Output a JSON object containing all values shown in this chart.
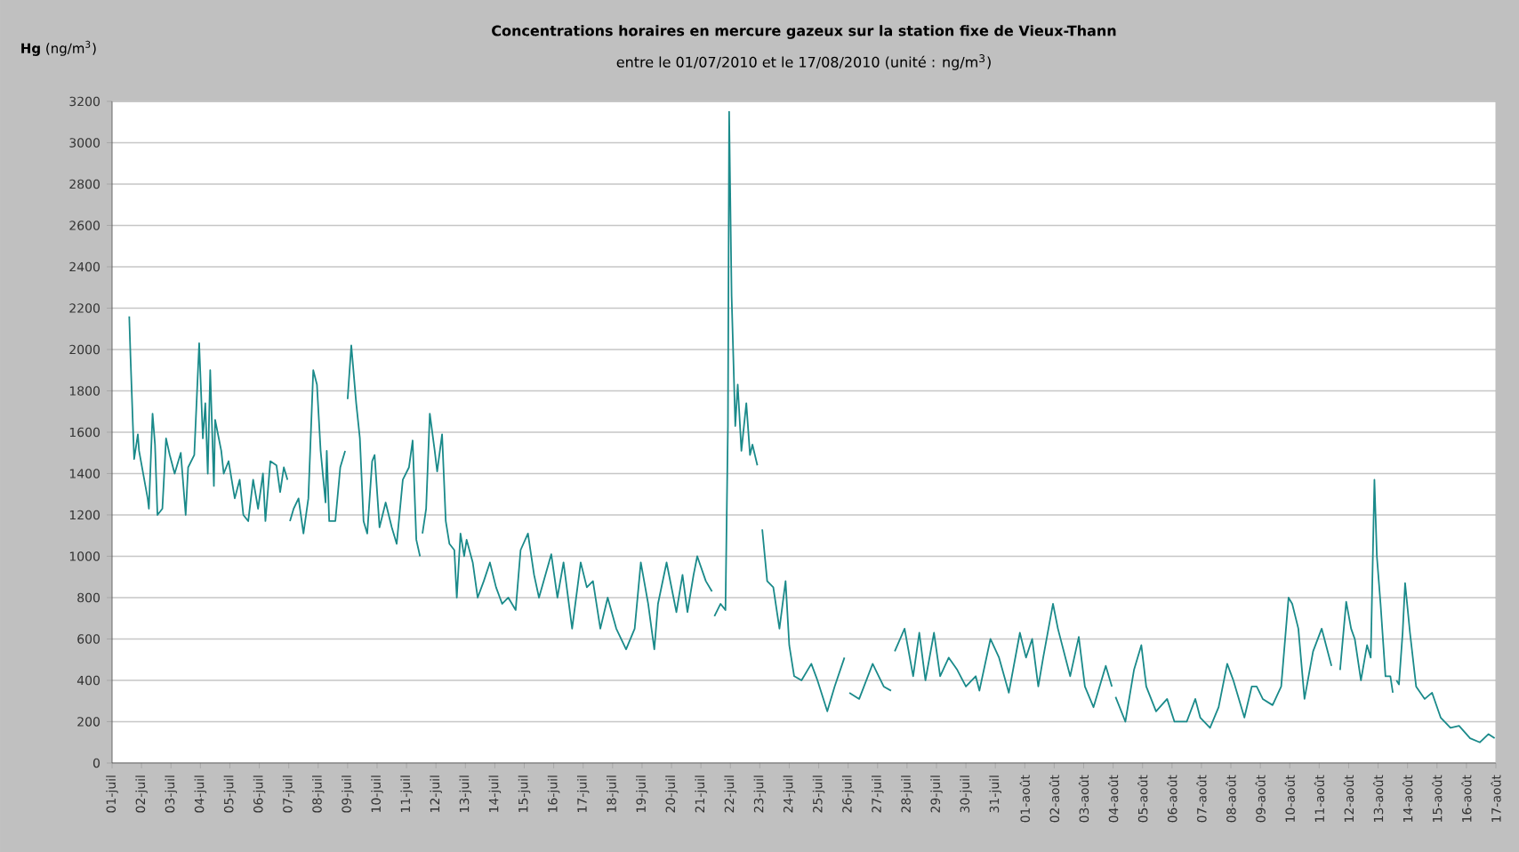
{
  "chart_data": {
    "type": "line",
    "title": "Concentrations horaires en mercure gazeux sur la station fixe de Vieux-Thann",
    "subtitle": "entre le 01/07/2010 et le 17/08/2010 (unité : ng/m$^{3}$)",
    "ylabel": "**Hg** (ng/m$^{3}$)",
    "color": "#1a8a8a",
    "marker": "none",
    "grid": "y",
    "xlim": [
      "2010-07-01",
      "2010-08-17"
    ],
    "ylim": [
      0,
      3200
    ],
    "yticks": [
      0,
      200,
      400,
      600,
      800,
      1000,
      1200,
      1400,
      1600,
      1800,
      2000,
      2200,
      2400,
      2600,
      2800,
      3000,
      3200
    ],
    "xticks": [
      {
        "value": "2010-07-01",
        "label": "01-juil"
      },
      {
        "value": "2010-07-02",
        "label": "02-juil"
      },
      {
        "value": "2010-07-03",
        "label": "03-juil"
      },
      {
        "value": "2010-07-04",
        "label": "04-juil"
      },
      {
        "value": "2010-07-05",
        "label": "05-juil"
      },
      {
        "value": "2010-07-06",
        "label": "06-juil"
      },
      {
        "value": "2010-07-07",
        "label": "07-juil"
      },
      {
        "value": "2010-07-08",
        "label": "08-juil"
      },
      {
        "value": "2010-07-09",
        "label": "09-juil"
      },
      {
        "value": "2010-07-10",
        "label": "10-juil"
      },
      {
        "value": "2010-07-11",
        "label": "11-juil"
      },
      {
        "value": "2010-07-12",
        "label": "12-juil"
      },
      {
        "value": "2010-07-13",
        "label": "13-juil"
      },
      {
        "value": "2010-07-14",
        "label": "14-juil"
      },
      {
        "value": "2010-07-15",
        "label": "15-juil"
      },
      {
        "value": "2010-07-16",
        "label": "16-juil"
      },
      {
        "value": "2010-07-17",
        "label": "17-juil"
      },
      {
        "value": "2010-07-18",
        "label": "18-juil"
      },
      {
        "value": "2010-07-19",
        "label": "19-juil"
      },
      {
        "value": "2010-07-20",
        "label": "20-juil"
      },
      {
        "value": "2010-07-21",
        "label": "21-juil"
      },
      {
        "value": "2010-07-22",
        "label": "22-juil"
      },
      {
        "value": "2010-07-23",
        "label": "23-juil"
      },
      {
        "value": "2010-07-24",
        "label": "24-juil"
      },
      {
        "value": "2010-07-25",
        "label": "25-juil"
      },
      {
        "value": "2010-07-26",
        "label": "26-juil"
      },
      {
        "value": "2010-07-27",
        "label": "27-juil"
      },
      {
        "value": "2010-07-28",
        "label": "28-juil"
      },
      {
        "value": "2010-07-29",
        "label": "29-juil"
      },
      {
        "value": "2010-07-30",
        "label": "30-juil"
      },
      {
        "value": "2010-07-31",
        "label": "31-juil"
      },
      {
        "value": "2010-08-01",
        "label": "01-août"
      },
      {
        "value": "2010-08-02",
        "label": "02-août"
      },
      {
        "value": "2010-08-03",
        "label": "03-août"
      },
      {
        "value": "2010-08-04",
        "label": "04-août"
      },
      {
        "value": "2010-08-05",
        "label": "05-août"
      },
      {
        "value": "2010-08-06",
        "label": "06-août"
      },
      {
        "value": "2010-08-07",
        "label": "07-août"
      },
      {
        "value": "2010-08-08",
        "label": "08-août"
      },
      {
        "value": "2010-08-09",
        "label": "09-août"
      },
      {
        "value": "2010-08-10",
        "label": "10-août"
      },
      {
        "value": "2010-08-11",
        "label": "11-août"
      },
      {
        "value": "2010-08-12",
        "label": "12-août"
      },
      {
        "value": "2010-08-13",
        "label": "13-août"
      },
      {
        "value": "2010-08-14",
        "label": "14-août"
      },
      {
        "value": "2010-08-15",
        "label": "15-août"
      },
      {
        "value": "2010-08-16",
        "label": "16-août"
      },
      {
        "value": "2010-08-17",
        "label": "17-août"
      }
    ],
    "x": [
      "2010-07-01T14:00",
      "2010-07-01T15:00",
      "2010-07-01T17:00",
      "2010-07-01T18:00",
      "2010-07-01T21:00",
      "2010-07-01T22:00",
      "2010-07-02T05:00",
      "2010-07-02T06:00",
      "2010-07-02T09:00",
      "2010-07-02T11:00",
      "2010-07-02T13:00",
      "2010-07-02T17:00",
      "2010-07-02T20:00",
      "2010-07-02T23:00",
      "2010-07-03T03:00",
      "2010-07-03T08:00",
      "2010-07-03T12:00",
      "2010-07-03T14:00",
      "2010-07-03T19:00",
      "2010-07-03T23:00",
      "2010-07-04T02:00",
      "2010-07-04T04:00",
      "2010-07-04T06:00",
      "2010-07-04T08:00",
      "2010-07-04T11:00",
      "2010-07-04T12:00",
      "2010-07-04T17:00",
      "2010-07-04T19:00",
      "2010-07-04T23:00",
      "2010-07-05T04:00",
      "2010-07-05T08:00",
      "2010-07-05T11:00",
      "2010-07-05T15:00",
      "2010-07-05T19:00",
      "2010-07-05T23:00",
      "2010-07-06T03:00",
      "2010-07-06T05:00",
      "2010-07-06T09:00",
      "2010-07-06T14:00",
      "2010-07-06T17:00",
      "2010-07-06T20:00",
      "2010-07-06T23:00",
      "2010-07-07T00:00",
      "2010-07-07T01:00",
      "2010-07-07T04:00",
      "2010-07-07T08:00",
      "2010-07-07T12:00",
      "2010-07-07T16:00",
      "2010-07-07T20:00",
      "2010-07-07T23:00",
      "2010-07-08T02:00",
      "2010-07-08T06:00",
      "2010-07-08T07:00",
      "2010-07-08T09:00",
      "2010-07-08T14:00",
      "2010-07-08T18:00",
      "2010-07-08T22:00",
      "2010-07-08T23:00",
      "2010-07-09T00:00",
      "2010-07-09T03:00",
      "2010-07-09T07:00",
      "2010-07-09T10:00",
      "2010-07-09T13:00",
      "2010-07-09T16:00",
      "2010-07-09T20:00",
      "2010-07-09T22:00",
      "2010-07-10T02:00",
      "2010-07-10T07:00",
      "2010-07-10T12:00",
      "2010-07-10T16:00",
      "2010-07-10T21:00",
      "2010-07-11T02:00",
      "2010-07-11T05:00",
      "2010-07-11T08:00",
      "2010-07-11T11:00",
      "2010-07-11T12:00",
      "2010-07-11T13:00",
      "2010-07-11T16:00",
      "2010-07-11T19:00",
      "2010-07-11T23:00",
      "2010-07-12T01:00",
      "2010-07-12T05:00",
      "2010-07-12T08:00",
      "2010-07-12T11:00",
      "2010-07-12T15:00",
      "2010-07-12T17:00",
      "2010-07-12T20:00",
      "2010-07-12T23:00",
      "2010-07-13T01:00",
      "2010-07-13T06:00",
      "2010-07-13T10:00",
      "2010-07-13T15:00",
      "2010-07-13T20:00",
      "2010-07-14T01:00",
      "2010-07-14T06:00",
      "2010-07-14T11:00",
      "2010-07-14T17:00",
      "2010-07-14T21:00",
      "2010-07-15T03:00",
      "2010-07-15T08:00",
      "2010-07-15T12:00",
      "2010-07-15T22:00",
      "2010-07-16T03:00",
      "2010-07-16T08:00",
      "2010-07-16T15:00",
      "2010-07-16T22:00",
      "2010-07-17T03:00",
      "2010-07-17T08:00",
      "2010-07-17T14:00",
      "2010-07-17T20:00",
      "2010-07-18T03:00",
      "2010-07-18T11:00",
      "2010-07-18T18:00",
      "2010-07-18T23:00",
      "2010-07-19T05:00",
      "2010-07-19T10:00",
      "2010-07-19T13:00",
      "2010-07-19T20:00",
      "2010-07-20T04:00",
      "2010-07-20T09:00",
      "2010-07-20T13:00",
      "2010-07-20T18:00",
      "2010-07-20T21:00",
      "2010-07-21T04:00",
      "2010-07-21T09:00",
      "2010-07-21T10:00",
      "2010-07-21T11:00",
      "2010-07-21T16:00",
      "2010-07-21T20:00",
      "2010-07-21T22:00",
      "2010-07-21T23:00",
      "2010-07-22T01:00",
      "2010-07-22T04:00",
      "2010-07-22T06:00",
      "2010-07-22T09:00",
      "2010-07-22T13:00",
      "2010-07-22T16:00",
      "2010-07-22T18:00",
      "2010-07-22T22:00",
      "2010-07-22T23:00",
      "2010-07-23T02:00",
      "2010-07-23T06:00",
      "2010-07-23T11:00",
      "2010-07-23T16:00",
      "2010-07-23T21:00",
      "2010-07-24T00:00",
      "2010-07-24T04:00",
      "2010-07-24T10:00",
      "2010-07-24T18:00",
      "2010-07-24T23:00",
      "2010-07-25T07:00",
      "2010-07-25T13:00",
      "2010-07-25T21:00",
      "2010-07-25T23:00",
      "2010-07-26T01:00",
      "2010-07-26T09:00",
      "2010-07-26T20:00",
      "2010-07-27T05:00",
      "2010-07-27T11:00",
      "2010-07-27T12:00",
      "2010-07-27T14:00",
      "2010-07-27T22:00",
      "2010-07-28T05:00",
      "2010-07-28T10:00",
      "2010-07-28T15:00",
      "2010-07-28T22:00",
      "2010-07-29T03:00",
      "2010-07-29T10:00",
      "2010-07-29T17:00",
      "2010-07-30T00:00",
      "2010-07-30T08:00",
      "2010-07-30T11:00",
      "2010-07-30T20:00",
      "2010-07-31T03:00",
      "2010-07-31T11:00",
      "2010-07-31T20:00",
      "2010-08-01T01:00",
      "2010-08-01T06:00",
      "2010-08-01T11:00",
      "2010-08-01T15:00",
      "2010-08-01T23:00",
      "2010-08-02T03:00",
      "2010-08-02T13:00",
      "2010-08-02T20:00",
      "2010-08-03T01:00",
      "2010-08-03T08:00",
      "2010-08-03T18:00",
      "2010-08-03T23:00",
      "2010-08-04T01:00",
      "2010-08-04T02:00",
      "2010-08-04T10:00",
      "2010-08-04T17:00",
      "2010-08-04T23:00",
      "2010-08-05T03:00",
      "2010-08-05T11:00",
      "2010-08-05T20:00",
      "2010-08-06T02:00",
      "2010-08-06T12:00",
      "2010-08-06T19:00",
      "2010-08-06T23:00",
      "2010-08-07T07:00",
      "2010-08-07T14:00",
      "2010-08-07T21:00",
      "2010-08-08T02:00",
      "2010-08-08T11:00",
      "2010-08-08T17:00",
      "2010-08-08T21:00",
      "2010-08-09T02:00",
      "2010-08-09T10:00",
      "2010-08-09T17:00",
      "2010-08-09T23:00",
      "2010-08-10T02:00",
      "2010-08-10T07:00",
      "2010-08-10T12:00",
      "2010-08-10T19:00",
      "2010-08-11T02:00",
      "2010-08-11T10:00",
      "2010-08-11T13:00",
      "2010-08-11T17:00",
      "2010-08-11T22:00",
      "2010-08-12T02:00",
      "2010-08-12T05:00",
      "2010-08-12T10:00",
      "2010-08-12T15:00",
      "2010-08-12T18:00",
      "2010-08-12T21:00",
      "2010-08-12T23:00",
      "2010-08-13T02:00",
      "2010-08-13T06:00",
      "2010-08-13T10:00",
      "2010-08-13T12:00",
      "2010-08-13T13:00",
      "2010-08-13T15:00",
      "2010-08-13T17:00",
      "2010-08-13T20:00",
      "2010-08-13T22:00",
      "2010-08-14T02:00",
      "2010-08-14T07:00",
      "2010-08-14T14:00",
      "2010-08-14T20:00",
      "2010-08-15T03:00",
      "2010-08-15T11:00",
      "2010-08-15T18:00",
      "2010-08-16T03:00",
      "2010-08-16T11:00",
      "2010-08-16T18:00",
      "2010-08-16T23:00"
    ],
    "values": [
      2160,
      1970,
      1630,
      1470,
      1590,
      1510,
      1280,
      1230,
      1690,
      1540,
      1200,
      1230,
      1570,
      1490,
      1400,
      1500,
      1200,
      1430,
      1490,
      2030,
      1570,
      1740,
      1400,
      1900,
      1340,
      1660,
      1510,
      1400,
      1460,
      1280,
      1370,
      1200,
      1170,
      1370,
      1230,
      1400,
      1170,
      1460,
      1440,
      1310,
      1430,
      1370,
      null,
      1170,
      1230,
      1280,
      1110,
      1280,
      1900,
      1830,
      1510,
      1260,
      1510,
      1170,
      1170,
      1430,
      1510,
      null,
      1760,
      2020,
      1740,
      1570,
      1170,
      1110,
      1460,
      1490,
      1140,
      1260,
      1140,
      1060,
      1370,
      1430,
      1560,
      1080,
      1000,
      null,
      1110,
      1230,
      1690,
      1510,
      1410,
      1590,
      1170,
      1060,
      1030,
      800,
      1110,
      1000,
      1080,
      970,
      800,
      880,
      970,
      850,
      770,
      800,
      740,
      1030,
      1110,
      910,
      800,
      1010,
      800,
      970,
      650,
      970,
      850,
      880,
      650,
      800,
      650,
      550,
      650,
      970,
      770,
      550,
      770,
      970,
      730,
      910,
      730,
      910,
      1000,
      880,
      830,
      null,
      710,
      770,
      740,
      1630,
      3150,
      2260,
      1630,
      1830,
      1510,
      1740,
      1490,
      1540,
      1440,
      null,
      1130,
      880,
      850,
      650,
      880,
      570,
      420,
      400,
      480,
      400,
      250,
      370,
      510,
      null,
      340,
      310,
      480,
      370,
      350,
      null,
      540,
      650,
      420,
      630,
      400,
      630,
      420,
      510,
      450,
      370,
      420,
      350,
      600,
      510,
      340,
      630,
      510,
      600,
      370,
      510,
      770,
      650,
      420,
      610,
      370,
      270,
      470,
      370,
      null,
      320,
      200,
      450,
      570,
      370,
      250,
      310,
      200,
      200,
      310,
      220,
      170,
      270,
      480,
      400,
      220,
      370,
      370,
      310,
      280,
      370,
      800,
      770,
      650,
      310,
      540,
      650,
      470,
      null,
      450,
      780,
      650,
      600,
      400,
      570,
      510,
      1370,
      1000,
      770,
      420,
      420,
      340,
      null,
      400,
      380,
      630,
      870,
      630,
      370,
      310,
      340,
      220,
      170,
      180,
      120,
      100,
      140,
      120
    ]
  }
}
